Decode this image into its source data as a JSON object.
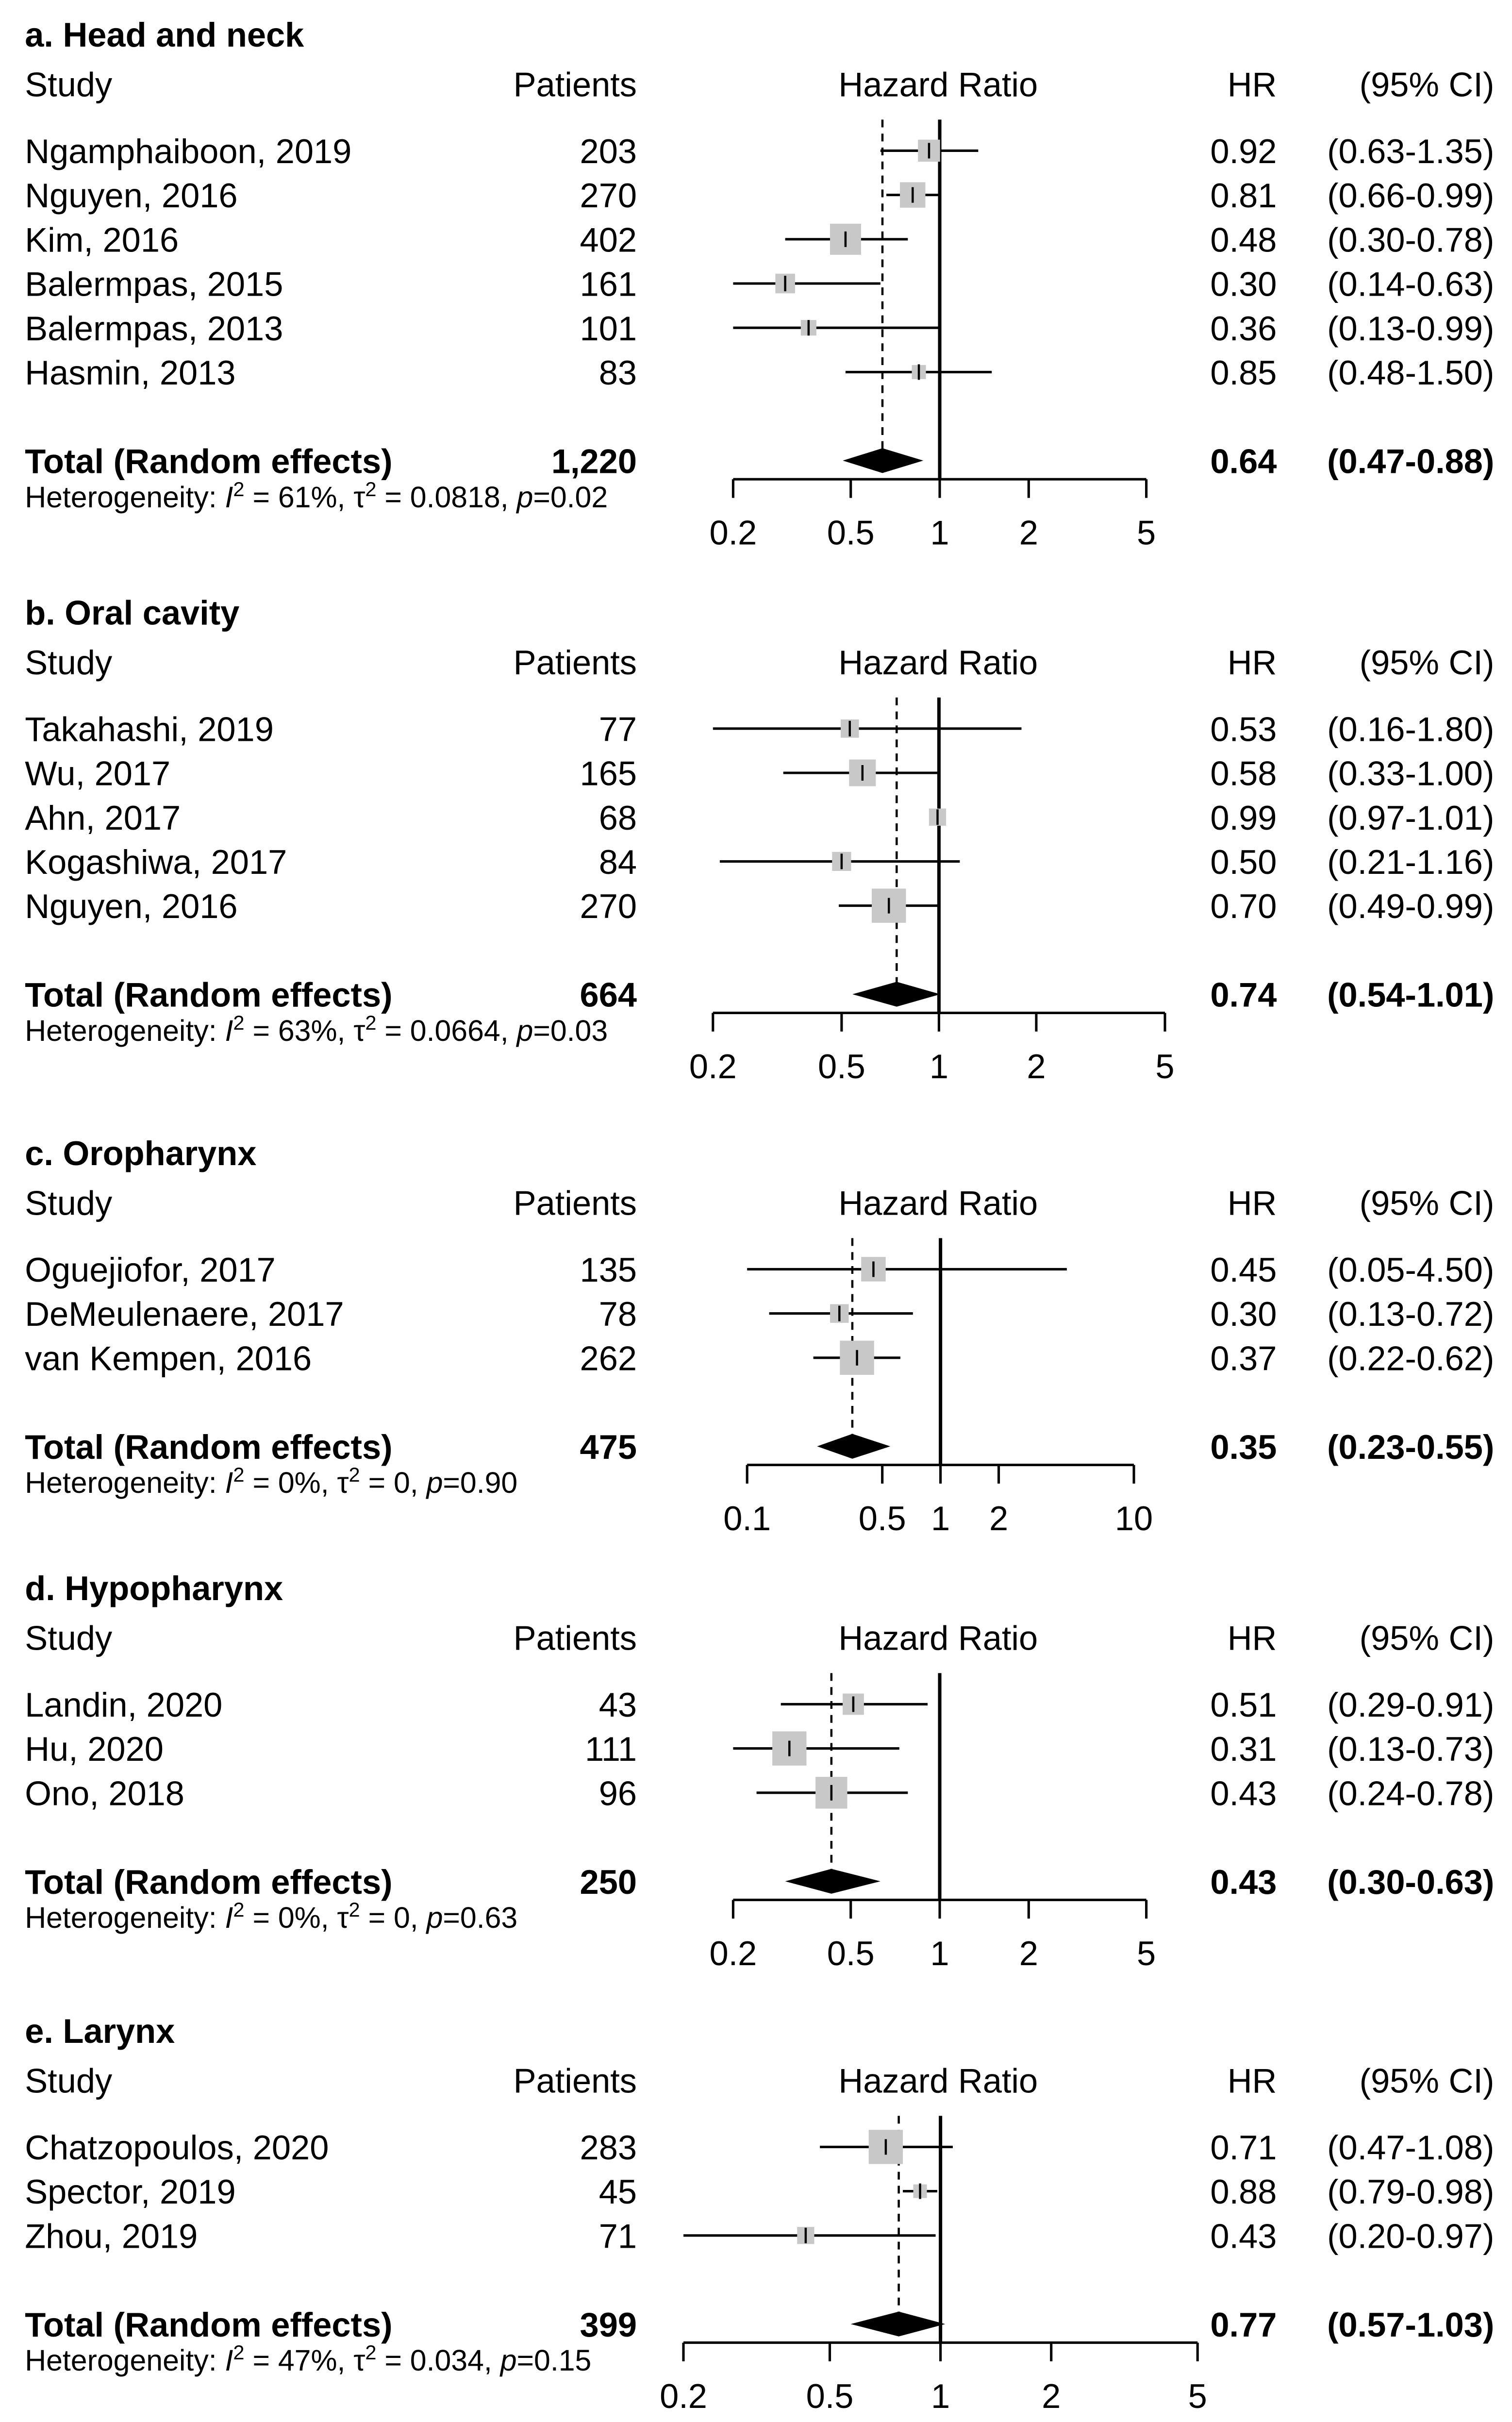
{
  "colors": {
    "box": "#c8c8c8",
    "line": "#000000",
    "diamond": "#000000",
    "background": "#ffffff"
  },
  "chart_data": [
    {
      "type": "forest",
      "title": "a. Head and neck",
      "headers": {
        "study": "Study",
        "patients": "Patients",
        "plot": "Hazard Ratio",
        "hr": "HR",
        "ci": "(95% CI)"
      },
      "scale": "log",
      "ticks": [
        "0.2",
        "0.5",
        "1",
        "2",
        "5"
      ],
      "studies": [
        {
          "name": "Ngamphaiboon, 2019",
          "patients": "203",
          "hr": 0.92,
          "lo": 0.63,
          "hi": 1.35,
          "hr_text": "0.92",
          "ci_text": "(0.63-1.35)"
        },
        {
          "name": "Nguyen, 2016",
          "patients": "270",
          "hr": 0.81,
          "lo": 0.66,
          "hi": 0.99,
          "hr_text": "0.81",
          "ci_text": "(0.66-0.99)"
        },
        {
          "name": "Kim, 2016",
          "patients": "402",
          "hr": 0.48,
          "lo": 0.3,
          "hi": 0.78,
          "hr_text": "0.48",
          "ci_text": "(0.30-0.78)"
        },
        {
          "name": "Balermpas, 2015",
          "patients": "161",
          "hr": 0.3,
          "lo": 0.14,
          "hi": 0.63,
          "hr_text": "0.30",
          "ci_text": "(0.14-0.63)"
        },
        {
          "name": "Balermpas, 2013",
          "patients": "101",
          "hr": 0.36,
          "lo": 0.13,
          "hi": 0.99,
          "hr_text": "0.36",
          "ci_text": "(0.13-0.99)"
        },
        {
          "name": "Hasmin, 2013",
          "patients": "83",
          "hr": 0.85,
          "lo": 0.48,
          "hi": 1.5,
          "hr_text": "0.85",
          "ci_text": "(0.48-1.50)"
        }
      ],
      "total": {
        "label": "Total (Random effects)",
        "patients": "1,220",
        "hr": 0.64,
        "lo": 0.47,
        "hi": 0.88,
        "hr_text": "0.64",
        "ci_text": "(0.47-0.88)"
      },
      "heterogeneity": {
        "prefix": "Heterogeneity: ",
        "i2_symbol": "I",
        "i2_value": " = 61%, ",
        "tau_symbol": "τ",
        "tau_value": " = 0.0818, ",
        "p_symbol": "p",
        "p_value": "=0.02"
      }
    },
    {
      "type": "forest",
      "title": "b. Oral cavity",
      "headers": {
        "study": "Study",
        "patients": "Patients",
        "plot": "Hazard Ratio",
        "hr": "HR",
        "ci": "(95% CI)"
      },
      "scale": "log",
      "ticks": [
        "0.2",
        "0.5",
        "1",
        "2",
        "5"
      ],
      "studies": [
        {
          "name": "Takahashi, 2019",
          "patients": "77",
          "hr": 0.53,
          "lo": 0.16,
          "hi": 1.8,
          "hr_text": "0.53",
          "ci_text": "(0.16-1.80)"
        },
        {
          "name": "Wu, 2017",
          "patients": "165",
          "hr": 0.58,
          "lo": 0.33,
          "hi": 1.0,
          "hr_text": "0.58",
          "ci_text": "(0.33-1.00)"
        },
        {
          "name": "Ahn, 2017",
          "patients": "68",
          "hr": 0.99,
          "lo": 0.97,
          "hi": 1.01,
          "hr_text": "0.99",
          "ci_text": "(0.97-1.01)"
        },
        {
          "name": "Kogashiwa, 2017",
          "patients": "84",
          "hr": 0.5,
          "lo": 0.21,
          "hi": 1.16,
          "hr_text": "0.50",
          "ci_text": "(0.21-1.16)"
        },
        {
          "name": "Nguyen, 2016",
          "patients": "270",
          "hr": 0.7,
          "lo": 0.49,
          "hi": 0.99,
          "hr_text": "0.70",
          "ci_text": "(0.49-0.99)"
        }
      ],
      "total": {
        "label": "Total (Random effects)",
        "patients": "664",
        "hr": 0.74,
        "lo": 0.54,
        "hi": 1.01,
        "hr_text": "0.74",
        "ci_text": "(0.54-1.01)"
      },
      "heterogeneity": {
        "prefix": "Heterogeneity: ",
        "i2_symbol": "I",
        "i2_value": " = 63%, ",
        "tau_symbol": "τ",
        "tau_value": " = 0.0664, ",
        "p_symbol": "p",
        "p_value": "=0.03"
      }
    },
    {
      "type": "forest",
      "title": "c. Oropharynx",
      "headers": {
        "study": "Study",
        "patients": "Patients",
        "plot": "Hazard Ratio",
        "hr": "HR",
        "ci": "(95% CI)"
      },
      "scale": "log",
      "ticks": [
        "0.1",
        "0.5",
        "1",
        "2",
        "10"
      ],
      "studies": [
        {
          "name": "Oguejiofor, 2017",
          "patients": "135",
          "hr": 0.45,
          "lo": 0.05,
          "hi": 4.5,
          "hr_text": "0.45",
          "ci_text": "(0.05-4.50)"
        },
        {
          "name": "DeMeulenaere, 2017",
          "patients": "78",
          "hr": 0.3,
          "lo": 0.13,
          "hi": 0.72,
          "hr_text": "0.30",
          "ci_text": "(0.13-0.72)"
        },
        {
          "name": "van Kempen, 2016",
          "patients": "262",
          "hr": 0.37,
          "lo": 0.22,
          "hi": 0.62,
          "hr_text": "0.37",
          "ci_text": "(0.22-0.62)"
        }
      ],
      "total": {
        "label": "Total (Random effects)",
        "patients": "475",
        "hr": 0.35,
        "lo": 0.23,
        "hi": 0.55,
        "hr_text": "0.35",
        "ci_text": "(0.23-0.55)"
      },
      "heterogeneity": {
        "prefix": "Heterogeneity: ",
        "i2_symbol": "I",
        "i2_value": " = 0%, ",
        "tau_symbol": "τ",
        "tau_value": " = 0, ",
        "p_symbol": "p",
        "p_value": "=0.90"
      }
    },
    {
      "type": "forest",
      "title": "d. Hypopharynx",
      "headers": {
        "study": "Study",
        "patients": "Patients",
        "plot": "Hazard Ratio",
        "hr": "HR",
        "ci": "(95% CI)"
      },
      "scale": "log",
      "ticks": [
        "0.2",
        "0.5",
        "1",
        "2",
        "5"
      ],
      "studies": [
        {
          "name": "Landin, 2020",
          "patients": "43",
          "hr": 0.51,
          "lo": 0.29,
          "hi": 0.91,
          "hr_text": "0.51",
          "ci_text": "(0.29-0.91)"
        },
        {
          "name": "Hu, 2020",
          "patients": "111",
          "hr": 0.31,
          "lo": 0.13,
          "hi": 0.73,
          "hr_text": "0.31",
          "ci_text": "(0.13-0.73)"
        },
        {
          "name": "Ono, 2018",
          "patients": "96",
          "hr": 0.43,
          "lo": 0.24,
          "hi": 0.78,
          "hr_text": "0.43",
          "ci_text": "(0.24-0.78)"
        }
      ],
      "total": {
        "label": "Total (Random effects)",
        "patients": "250",
        "hr": 0.43,
        "lo": 0.3,
        "hi": 0.63,
        "hr_text": "0.43",
        "ci_text": "(0.30-0.63)"
      },
      "heterogeneity": {
        "prefix": "Heterogeneity: ",
        "i2_symbol": "I",
        "i2_value": " = 0%, ",
        "tau_symbol": "τ",
        "tau_value": " = 0, ",
        "p_symbol": "p",
        "p_value": "=0.63"
      }
    },
    {
      "type": "forest",
      "title": "e. Larynx",
      "headers": {
        "study": "Study",
        "patients": "Patients",
        "plot": "Hazard Ratio",
        "hr": "HR",
        "ci": "(95% CI)"
      },
      "scale": "log",
      "ticks": [
        "0.2",
        "0.5",
        "1",
        "2",
        "5"
      ],
      "studies": [
        {
          "name": "Chatzopoulos, 2020",
          "patients": "283",
          "hr": 0.71,
          "lo": 0.47,
          "hi": 1.08,
          "hr_text": "0.71",
          "ci_text": "(0.47-1.08)"
        },
        {
          "name": "Spector, 2019",
          "patients": "45",
          "hr": 0.88,
          "lo": 0.79,
          "hi": 0.98,
          "hr_text": "0.88",
          "ci_text": "(0.79-0.98)"
        },
        {
          "name": "Zhou, 2019",
          "patients": "71",
          "hr": 0.43,
          "lo": 0.2,
          "hi": 0.97,
          "hr_text": "0.43",
          "ci_text": "(0.20-0.97)"
        }
      ],
      "total": {
        "label": "Total (Random effects)",
        "patients": "399",
        "hr": 0.77,
        "lo": 0.57,
        "hi": 1.03,
        "hr_text": "0.77",
        "ci_text": "(0.57-1.03)"
      },
      "heterogeneity": {
        "prefix": "Heterogeneity: ",
        "i2_symbol": "I",
        "i2_value": " = 47%, ",
        "tau_symbol": "τ",
        "tau_value": " = 0.034, ",
        "p_symbol": "p",
        "p_value": "=0.15"
      }
    }
  ]
}
